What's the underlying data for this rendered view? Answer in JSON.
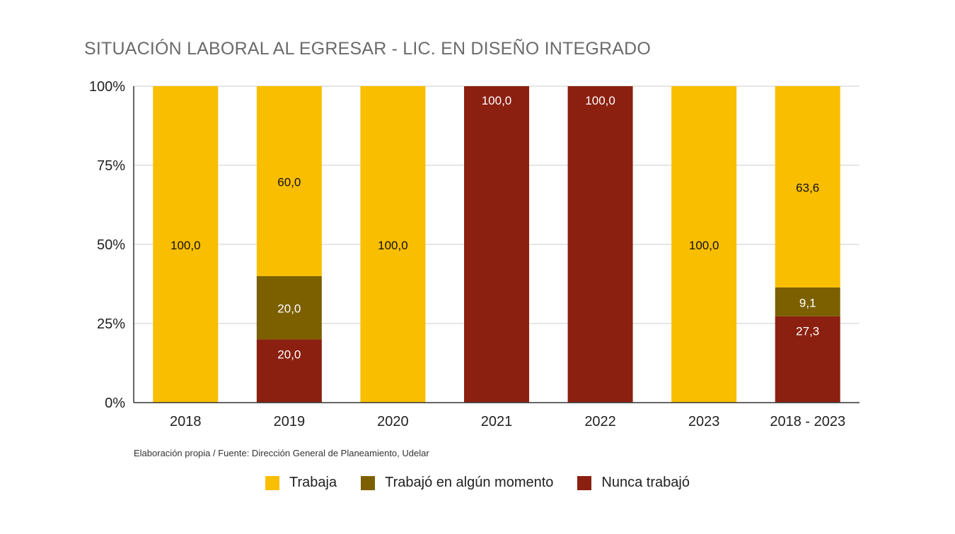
{
  "chart_data": {
    "type": "bar",
    "stacked": true,
    "title": "SITUACIÓN LABORAL AL EGRESAR - LIC. EN DISEÑO INTEGRADO",
    "categories": [
      "2018",
      "2019",
      "2020",
      "2021",
      "2022",
      "2023",
      "2018 - 2023"
    ],
    "series": [
      {
        "name": "Nunca trabajó",
        "color": "#8b2010",
        "values": [
          0,
          20.0,
          0,
          100.0,
          100.0,
          0,
          27.3
        ]
      },
      {
        "name": "Trabajó en algún momento",
        "color": "#7c6000",
        "values": [
          0,
          20.0,
          0,
          0,
          0,
          0,
          9.1
        ]
      },
      {
        "name": "Trabaja",
        "color": "#f9be00",
        "values": [
          100.0,
          60.0,
          100.0,
          0,
          0,
          100.0,
          63.6
        ]
      }
    ],
    "data_labels": [
      [
        "",
        "20,0",
        "",
        "100,0",
        "100,0",
        "",
        "27,3"
      ],
      [
        "",
        "20,0",
        "",
        "",
        "",
        "",
        "9,1"
      ],
      [
        "100,0",
        "60,0",
        "100,0",
        "",
        "",
        "100,0",
        "63,6"
      ]
    ],
    "yticks": [
      "0%",
      "25%",
      "50%",
      "75%",
      "100%"
    ],
    "ylim": [
      0,
      100
    ],
    "grid": true,
    "legend_position": "bottom",
    "legend_order": [
      "Trabaja",
      "Trabajó en algún momento",
      "Nunca trabajó"
    ]
  },
  "source_note": "Elaboración propia / Fuente: Dirección General de Planeamiento, Udelar"
}
